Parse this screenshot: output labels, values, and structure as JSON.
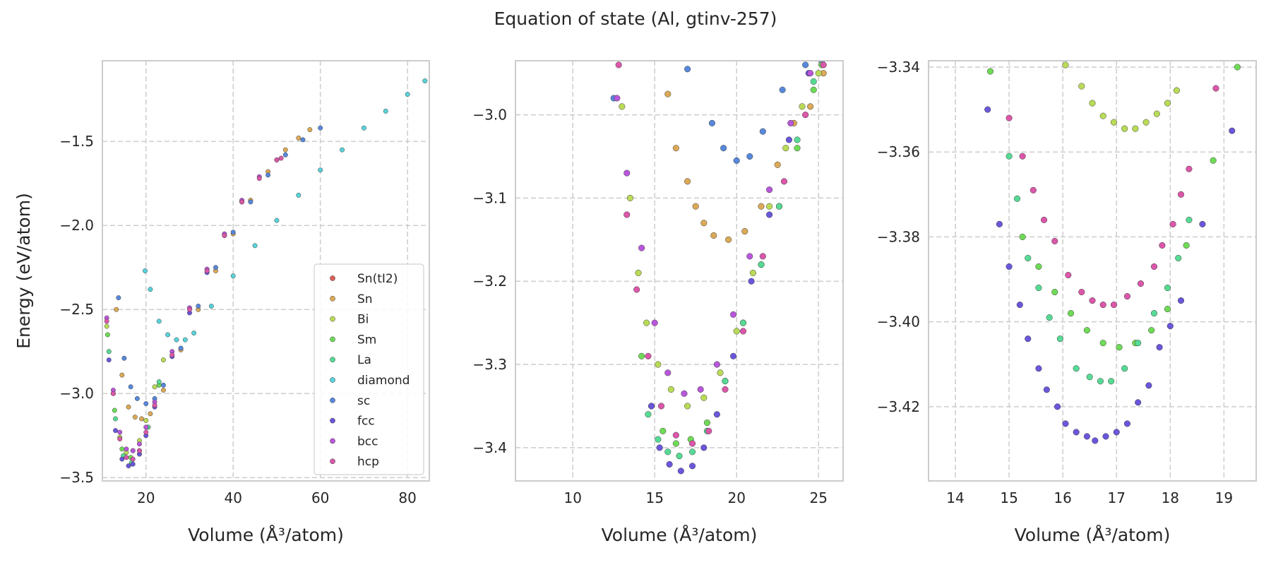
{
  "figure_title": "Equation of state (Al, gtinv-257)",
  "series_styles": [
    {
      "name": "Sn(tI2)",
      "color": "#db5f57"
    },
    {
      "name": "Sn",
      "color": "#dba957"
    },
    {
      "name": "Bi",
      "color": "#b9db57"
    },
    {
      "name": "Sm",
      "color": "#6fdb57"
    },
    {
      "name": "La",
      "color": "#57db94"
    },
    {
      "name": "diamond",
      "color": "#57d3db"
    },
    {
      "name": "sc",
      "color": "#5788db"
    },
    {
      "name": "fcc",
      "color": "#6957db"
    },
    {
      "name": "bcc",
      "color": "#b957db"
    },
    {
      "name": "hcp",
      "color": "#db57a9"
    }
  ],
  "chart_data": [
    {
      "type": "scatter",
      "xlabel": "Volume (Å³/atom)",
      "ylabel": "Energy (eV/atom)",
      "xlim": [
        10,
        85
      ],
      "ylim": [
        -3.52,
        -1.02
      ],
      "xticks": [
        20,
        40,
        60,
        80
      ],
      "yticks": [
        -3.5,
        -3.0,
        -2.5,
        -2.0,
        -1.5
      ],
      "xtick_labels": [
        "20",
        "40",
        "60",
        "80"
      ],
      "ytick_labels": [
        "−3.5",
        "−3.0",
        "−2.5",
        "−2.0",
        "−1.5"
      ],
      "grid": true,
      "legend": "lower-right",
      "legend_entries": [
        "Sn(tI2)",
        "Sn",
        "Bi",
        "Sm",
        "La",
        "diamond",
        "sc",
        "fcc",
        "bcc",
        "hcp"
      ],
      "series": [
        {
          "name": "Sn(tI2)",
          "x": [],
          "y": []
        },
        {
          "name": "Sn",
          "x": [
            13.2,
            14.5,
            16.0,
            17.5,
            19.0,
            21.0,
            24.0,
            28.0,
            32.0,
            36.0,
            40.0,
            44.0,
            48.0,
            52.0,
            55.0,
            57.6
          ],
          "y": [
            -2.5,
            -2.89,
            -3.08,
            -3.14,
            -3.15,
            -3.12,
            -2.98,
            -2.74,
            -2.5,
            -2.27,
            -2.05,
            -1.85,
            -1.68,
            -1.55,
            -1.48,
            -1.43
          ]
        },
        {
          "name": "Bi",
          "x": [
            11.0,
            12.5,
            14.0,
            15.5,
            17.0,
            18.5,
            20.0,
            22.0,
            24.0
          ],
          "y": [
            -2.6,
            -3.0,
            -3.26,
            -3.35,
            -3.34,
            -3.28,
            -3.16,
            -2.96,
            -2.8
          ]
        },
        {
          "name": "Sm",
          "x": [
            11.2,
            12.8,
            14.5,
            16.5,
            18.5,
            20.5,
            23.0
          ],
          "y": [
            -2.65,
            -3.1,
            -3.33,
            -3.38,
            -3.34,
            -3.2,
            -2.95
          ]
        },
        {
          "name": "La",
          "x": [
            11.5,
            13.0,
            14.8,
            16.7,
            18.5,
            20.5,
            23.0
          ],
          "y": [
            -2.75,
            -3.15,
            -3.37,
            -3.41,
            -3.36,
            -3.2,
            -2.93
          ]
        },
        {
          "name": "diamond",
          "x": [
            19.8,
            21.0,
            23.0,
            25.0,
            27.0,
            29.0,
            31.0,
            35.0,
            40.0,
            45.0,
            50.0,
            55.0,
            60.0,
            65.0,
            70.0,
            75.0,
            80.0,
            84.0
          ],
          "y": [
            -2.27,
            -2.38,
            -2.57,
            -2.65,
            -2.68,
            -2.68,
            -2.64,
            -2.48,
            -2.3,
            -2.12,
            -1.97,
            -1.82,
            -1.67,
            -1.55,
            -1.42,
            -1.32,
            -1.22,
            -1.14
          ]
        },
        {
          "name": "sc",
          "x": [
            13.7,
            15.0,
            16.5,
            18.0,
            20.0,
            22.0,
            24.0,
            28.0,
            32.0,
            36.0,
            40.0,
            44.0,
            48.0,
            52.0,
            56.0,
            60.0
          ],
          "y": [
            -2.43,
            -2.79,
            -2.96,
            -3.03,
            -3.06,
            -3.03,
            -2.95,
            -2.73,
            -2.48,
            -2.25,
            -2.04,
            -1.86,
            -1.7,
            -1.58,
            -1.49,
            -1.42
          ]
        },
        {
          "name": "fcc",
          "x": [
            11.5,
            13.0,
            14.5,
            16.0,
            17.0,
            18.5,
            20.0,
            22.0,
            26.0,
            30.0,
            34.0,
            38.0,
            42.0
          ],
          "y": [
            -2.8,
            -3.22,
            -3.39,
            -3.43,
            -3.42,
            -3.36,
            -3.25,
            -3.08,
            -2.78,
            -2.52,
            -2.28,
            -2.06,
            -1.86
          ]
        },
        {
          "name": "bcc",
          "x": [
            11.0,
            12.5,
            14.0,
            15.5,
            17.0,
            18.5,
            20.0,
            22.0,
            26.0,
            30.0,
            34.0,
            38.0,
            42.0,
            46.0,
            50.0
          ],
          "y": [
            -2.55,
            -2.98,
            -3.23,
            -3.33,
            -3.34,
            -3.3,
            -3.2,
            -3.05,
            -2.75,
            -2.49,
            -2.26,
            -2.05,
            -1.85,
            -1.71,
            -1.61
          ]
        },
        {
          "name": "hcp",
          "x": [
            11.0,
            12.5,
            14.0,
            15.5,
            17.0,
            18.5,
            20.0,
            22.0,
            26.0,
            30.0,
            34.0,
            38.0,
            42.0,
            46.0,
            50.0,
            51.0
          ],
          "y": [
            -2.57,
            -3.0,
            -3.27,
            -3.38,
            -3.39,
            -3.34,
            -3.23,
            -3.07,
            -2.77,
            -2.5,
            -2.27,
            -2.06,
            -1.86,
            -1.72,
            -1.61,
            -1.6
          ]
        }
      ]
    },
    {
      "type": "scatter",
      "xlabel": "Volume (Å³/atom)",
      "ylabel": "",
      "xlim": [
        6.5,
        26.5
      ],
      "ylim": [
        -3.44,
        -2.935
      ],
      "xticks": [
        10,
        15,
        20,
        25
      ],
      "yticks": [
        -3.4,
        -3.3,
        -3.2,
        -3.1,
        -3.0
      ],
      "xtick_labels": [
        "10",
        "15",
        "20",
        "25"
      ],
      "ytick_labels": [
        "−3.4",
        "−3.3",
        "−3.2",
        "−3.1",
        "−3.0"
      ],
      "grid": true,
      "series": [
        {
          "name": "sc",
          "x": [
            12.5,
            17.0,
            18.5,
            19.2,
            20.0,
            20.8,
            21.6,
            22.8,
            24.2,
            25.2
          ],
          "y": [
            -2.98,
            -2.945,
            -3.01,
            -3.04,
            -3.055,
            -3.05,
            -3.02,
            -2.97,
            -2.94,
            -2.935
          ]
        },
        {
          "name": "Sn",
          "x": [
            15.8,
            16.3,
            17.0,
            17.5,
            18.0,
            18.6,
            19.5,
            20.5,
            21.5,
            22.5,
            23.5,
            24.5,
            25.3
          ],
          "y": [
            -2.975,
            -3.04,
            -3.08,
            -3.11,
            -3.13,
            -3.145,
            -3.15,
            -3.14,
            -3.11,
            -3.06,
            -3.01,
            -2.99,
            -2.95
          ]
        },
        {
          "name": "Bi",
          "x": [
            13.0,
            13.5,
            14.0,
            14.5,
            15.2,
            16.0,
            17.0,
            18.0,
            19.0,
            20.0,
            21.0,
            22.0,
            23.0,
            24.0,
            25.0
          ],
          "y": [
            -2.99,
            -3.1,
            -3.19,
            -3.25,
            -3.3,
            -3.33,
            -3.35,
            -3.34,
            -3.31,
            -3.26,
            -3.19,
            -3.11,
            -3.04,
            -2.99,
            -2.95
          ]
        },
        {
          "name": "Sm",
          "x": [
            14.2,
            14.8,
            15.5,
            16.3,
            17.2,
            18.2,
            19.3,
            20.4,
            21.5,
            22.6,
            23.7,
            24.7,
            25.2
          ],
          "y": [
            -3.29,
            -3.35,
            -3.38,
            -3.395,
            -3.39,
            -3.37,
            -3.32,
            -3.25,
            -3.18,
            -3.11,
            -3.04,
            -2.97,
            -2.94
          ]
        },
        {
          "name": "La",
          "x": [
            14.6,
            15.2,
            15.8,
            16.5,
            17.3,
            18.2,
            19.3,
            20.4,
            21.5,
            22.6,
            23.7,
            24.7
          ],
          "y": [
            -3.36,
            -3.39,
            -3.405,
            -3.41,
            -3.405,
            -3.38,
            -3.32,
            -3.25,
            -3.18,
            -3.11,
            -3.03,
            -2.96
          ]
        },
        {
          "name": "fcc",
          "x": [
            14.8,
            15.3,
            15.9,
            16.6,
            17.3,
            18.0,
            18.8,
            19.8,
            20.9,
            22.0,
            23.2,
            24.4
          ],
          "y": [
            -3.35,
            -3.4,
            -3.42,
            -3.428,
            -3.422,
            -3.4,
            -3.36,
            -3.29,
            -3.2,
            -3.12,
            -3.03,
            -2.95
          ]
        },
        {
          "name": "bcc",
          "x": [
            12.7,
            13.3,
            14.2,
            15.0,
            15.8,
            16.8,
            17.8,
            18.8,
            19.8,
            20.8,
            22.0,
            23.3,
            24.5
          ],
          "y": [
            -2.98,
            -3.07,
            -3.16,
            -3.25,
            -3.31,
            -3.335,
            -3.33,
            -3.3,
            -3.24,
            -3.17,
            -3.09,
            -3.01,
            -2.95
          ]
        },
        {
          "name": "hcp",
          "x": [
            12.8,
            13.3,
            13.9,
            14.6,
            15.4,
            16.3,
            17.3,
            18.3,
            19.3,
            20.4,
            21.6,
            22.9,
            24.2,
            25.3
          ],
          "y": [
            -2.94,
            -3.12,
            -3.21,
            -3.29,
            -3.35,
            -3.385,
            -3.395,
            -3.38,
            -3.33,
            -3.26,
            -3.17,
            -3.08,
            -3.0,
            -2.94
          ]
        }
      ]
    },
    {
      "type": "scatter",
      "xlabel": "Volume (Å³/atom)",
      "ylabel": "",
      "xlim": [
        13.5,
        19.6
      ],
      "ylim": [
        -3.4375,
        -3.3385
      ],
      "xticks": [
        14,
        15,
        16,
        17,
        18,
        19
      ],
      "yticks": [
        -3.42,
        -3.4,
        -3.38,
        -3.36,
        -3.34
      ],
      "xtick_labels": [
        "14",
        "15",
        "16",
        "17",
        "18",
        "19"
      ],
      "ytick_labels": [
        "−3.42",
        "−3.40",
        "−3.38",
        "−3.36",
        "−3.34"
      ],
      "grid": true,
      "series": [
        {
          "name": "Bi",
          "x": [
            16.05,
            16.35,
            16.55,
            16.75,
            16.95,
            17.15,
            17.35,
            17.55,
            17.75,
            17.95,
            18.12
          ],
          "y": [
            -3.3395,
            -3.3445,
            -3.3485,
            -3.3515,
            -3.353,
            -3.3545,
            -3.3545,
            -3.353,
            -3.351,
            -3.3485,
            -3.3455
          ]
        },
        {
          "name": "Sm",
          "x": [
            14.65,
            15.25,
            15.55,
            15.85,
            16.15,
            16.45,
            16.75,
            17.05,
            17.35,
            17.65,
            17.95,
            18.3,
            18.8,
            19.25
          ],
          "y": [
            -3.341,
            -3.38,
            -3.387,
            -3.393,
            -3.398,
            -3.402,
            -3.405,
            -3.406,
            -3.405,
            -3.402,
            -3.397,
            -3.382,
            -3.362,
            -3.34
          ]
        },
        {
          "name": "La",
          "x": [
            15.0,
            15.15,
            15.35,
            15.55,
            15.75,
            15.95,
            16.25,
            16.5,
            16.7,
            16.9,
            17.15,
            17.4,
            17.7,
            17.95,
            18.15,
            18.35
          ],
          "y": [
            -3.361,
            -3.371,
            -3.385,
            -3.392,
            -3.399,
            -3.404,
            -3.411,
            -3.413,
            -3.414,
            -3.414,
            -3.411,
            -3.405,
            -3.398,
            -3.392,
            -3.385,
            -3.376
          ]
        },
        {
          "name": "fcc",
          "x": [
            14.6,
            14.82,
            15.0,
            15.2,
            15.35,
            15.55,
            15.7,
            15.9,
            16.05,
            16.25,
            16.45,
            16.6,
            16.8,
            17.0,
            17.2,
            17.4,
            17.6,
            17.8,
            18.0,
            18.2,
            18.6,
            19.15
          ],
          "y": [
            -3.35,
            -3.377,
            -3.387,
            -3.396,
            -3.404,
            -3.411,
            -3.416,
            -3.42,
            -3.424,
            -3.426,
            -3.427,
            -3.428,
            -3.427,
            -3.426,
            -3.424,
            -3.419,
            -3.415,
            -3.406,
            -3.401,
            -3.395,
            -3.377,
            -3.355
          ]
        },
        {
          "name": "hcp",
          "x": [
            15.0,
            15.25,
            15.45,
            15.65,
            15.85,
            16.1,
            16.35,
            16.55,
            16.75,
            16.95,
            17.2,
            17.45,
            17.7,
            17.85,
            18.05,
            18.2,
            18.35,
            18.85
          ],
          "y": [
            -3.352,
            -3.361,
            -3.369,
            -3.376,
            -3.381,
            -3.389,
            -3.393,
            -3.395,
            -3.396,
            -3.396,
            -3.394,
            -3.391,
            -3.387,
            -3.382,
            -3.377,
            -3.37,
            -3.364,
            -3.345
          ]
        }
      ]
    }
  ]
}
